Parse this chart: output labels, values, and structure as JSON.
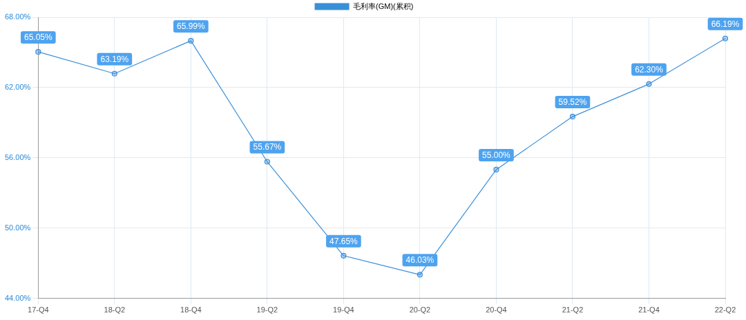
{
  "chart_data": {
    "type": "line",
    "categories": [
      "17-Q4",
      "18-Q2",
      "18-Q4",
      "19-Q2",
      "19-Q4",
      "20-Q2",
      "20-Q4",
      "21-Q2",
      "21-Q4",
      "22-Q2"
    ],
    "series": [
      {
        "name": "毛利率(GM)(累积)",
        "color": "#3a8fd9",
        "values": [
          65.05,
          63.19,
          65.99,
          55.67,
          47.65,
          46.03,
          55.0,
          59.52,
          62.3,
          66.19
        ],
        "value_labels": [
          "65.05%",
          "63.19%",
          "65.99%",
          "55.67%",
          "47.65%",
          "46.03%",
          "55.00%",
          "59.52%",
          "62.30%",
          "66.19%"
        ]
      }
    ],
    "ylim": [
      44,
      68
    ],
    "yticks": [
      {
        "value": 44,
        "label": "44.00%"
      },
      {
        "value": 50,
        "label": "50.00%"
      },
      {
        "value": 56,
        "label": "56.00%"
      },
      {
        "value": 62,
        "label": "62.00%"
      },
      {
        "value": 68,
        "label": "68.00%"
      }
    ],
    "grid": true,
    "legend": "top",
    "marker": "circle",
    "line_style": "solid"
  }
}
